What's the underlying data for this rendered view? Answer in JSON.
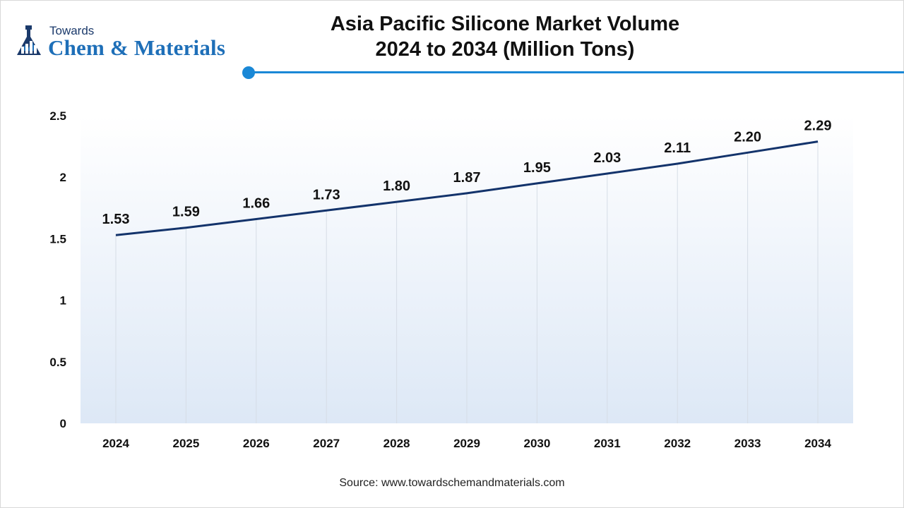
{
  "logo": {
    "small_text": "Towards",
    "big_text": "Chem & Materials",
    "icon": "flask-chart-icon"
  },
  "title": {
    "line1": "Asia Pacific Silicone Market Volume",
    "line2": "2024 to 2034 (Million Tons)"
  },
  "colors": {
    "accent": "#1a88d6",
    "line": "#13336b",
    "plot_gradient_top": "#ffffff",
    "plot_gradient_bottom": "#dde8f6",
    "gridline": "#d6dde6"
  },
  "chart_data": {
    "type": "line",
    "title": "Asia Pacific Silicone Market Volume 2024 to 2034 (Million Tons)",
    "x": [
      "2024",
      "2025",
      "2026",
      "2027",
      "2028",
      "2029",
      "2030",
      "2031",
      "2032",
      "2033",
      "2034"
    ],
    "series": [
      {
        "values": [
          1.53,
          1.59,
          1.66,
          1.73,
          1.8,
          1.87,
          1.95,
          2.03,
          2.11,
          2.2,
          2.29
        ],
        "labels": [
          "1.53",
          "1.59",
          "1.66",
          "1.73",
          "1.80",
          "1.87",
          "1.95",
          "2.03",
          "2.11",
          "2.20",
          "2.29"
        ]
      }
    ],
    "yticks": [
      "0",
      "0.5",
      "1",
      "1.5",
      "2",
      "2.5"
    ],
    "ylim": [
      0,
      2.5
    ],
    "xlabel": "",
    "ylabel": "",
    "grid": "vertical",
    "legend": "none"
  },
  "source": {
    "label": "Source:",
    "url": "www.towardschemandmaterials.com"
  }
}
